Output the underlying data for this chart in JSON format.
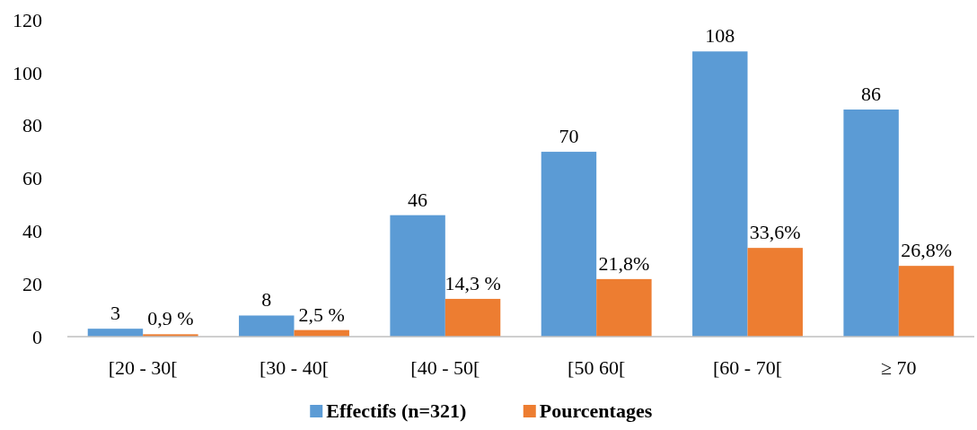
{
  "chart_data": {
    "type": "bar",
    "categories": [
      "[20 - 30[",
      "[30 - 40[",
      "[40 - 50[",
      "[50  60[",
      "[60 - 70[",
      "≥ 70"
    ],
    "series": [
      {
        "name": "Effectifs (n=321)",
        "color": "#5b9bd5",
        "values": [
          3,
          8,
          46,
          70,
          108,
          86
        ],
        "value_labels": [
          "3",
          "8",
          "46",
          "70",
          "108",
          "86"
        ]
      },
      {
        "name": "Pourcentages",
        "color": "#ed7d31",
        "values": [
          0.9,
          2.5,
          14.3,
          21.8,
          33.6,
          26.8
        ],
        "value_labels": [
          "0,9 %",
          "2,5 %",
          "14,3 %",
          "21,8%",
          "33,6%",
          "26,8%"
        ]
      }
    ],
    "ylim": [
      0,
      120
    ],
    "yticks": [
      0,
      20,
      40,
      60,
      80,
      100,
      120
    ],
    "grid": false,
    "legend": "bottom"
  }
}
